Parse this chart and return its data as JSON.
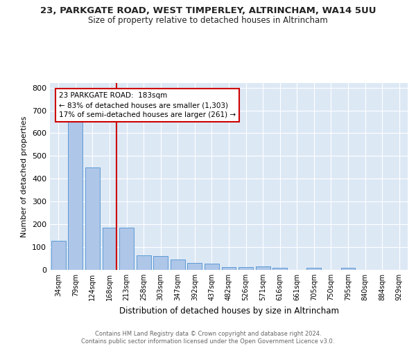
{
  "title_line1": "23, PARKGATE ROAD, WEST TIMPERLEY, ALTRINCHAM, WA14 5UU",
  "title_line2": "Size of property relative to detached houses in Altrincham",
  "xlabel": "Distribution of detached houses by size in Altrincham",
  "ylabel": "Number of detached properties",
  "categories": [
    "34sqm",
    "79sqm",
    "124sqm",
    "168sqm",
    "213sqm",
    "258sqm",
    "303sqm",
    "347sqm",
    "392sqm",
    "437sqm",
    "482sqm",
    "526sqm",
    "571sqm",
    "616sqm",
    "661sqm",
    "705sqm",
    "750sqm",
    "795sqm",
    "840sqm",
    "884sqm",
    "929sqm"
  ],
  "values": [
    127,
    655,
    450,
    185,
    185,
    63,
    60,
    47,
    30,
    28,
    12,
    13,
    15,
    8,
    0,
    8,
    0,
    8,
    0,
    0,
    0
  ],
  "bar_color": "#aec6e8",
  "bar_edge_color": "#5b9bd5",
  "background_color": "#dde8f5",
  "grid_color": "#ffffff",
  "vline_color": "#cc0000",
  "annotation_line1": "23 PARKGATE ROAD:  183sqm",
  "annotation_line2": "← 83% of detached houses are smaller (1,303)",
  "annotation_line3": "17% of semi-detached houses are larger (261) →",
  "annotation_box_color": "#ffffff",
  "annotation_box_edge": "#cc0000",
  "footer_text": "Contains HM Land Registry data © Crown copyright and database right 2024.\nContains public sector information licensed under the Open Government Licence v3.0.",
  "ylim": [
    0,
    820
  ],
  "yticks": [
    0,
    100,
    200,
    300,
    400,
    500,
    600,
    700,
    800
  ]
}
